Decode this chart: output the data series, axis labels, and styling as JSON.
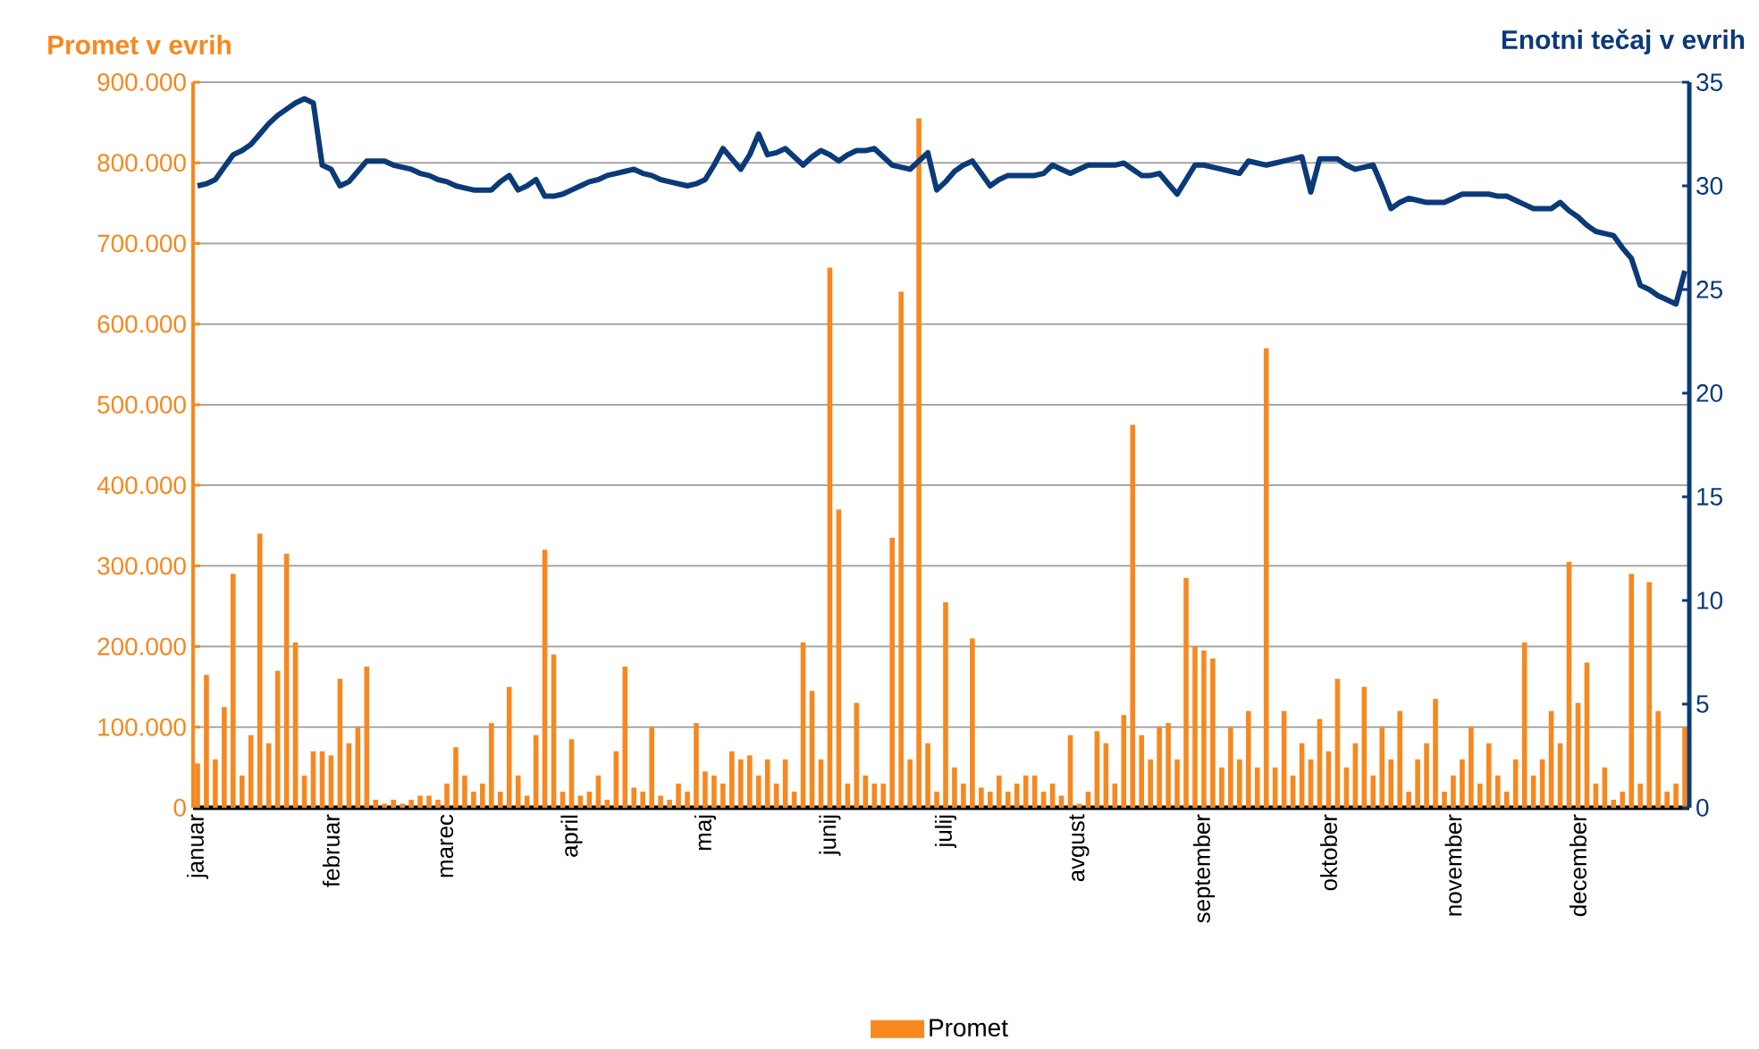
{
  "chart_data": {
    "type": "bar",
    "ylabel": "Promet v evrih",
    "y2label": "Enotni tečaj v evrih",
    "categories": [
      "januar",
      null,
      null,
      null,
      null,
      null,
      null,
      null,
      null,
      null,
      null,
      null,
      null,
      null,
      null,
      "februar",
      null,
      null,
      null,
      null,
      null,
      null,
      null,
      null,
      null,
      null,
      null,
      null,
      "marec",
      null,
      null,
      null,
      null,
      null,
      null,
      null,
      null,
      null,
      null,
      null,
      null,
      null,
      "april",
      null,
      null,
      null,
      null,
      null,
      null,
      null,
      null,
      null,
      null,
      null,
      null,
      null,
      null,
      "maj",
      null,
      null,
      null,
      null,
      null,
      null,
      null,
      null,
      null,
      null,
      null,
      null,
      null,
      "junij",
      null,
      null,
      null,
      null,
      null,
      null,
      null,
      null,
      null,
      null,
      null,
      null,
      "julij",
      null,
      null,
      null,
      null,
      null,
      null,
      null,
      null,
      null,
      null,
      null,
      null,
      null,
      null,
      "avgust",
      null,
      null,
      null,
      null,
      null,
      null,
      null,
      null,
      null,
      null,
      null,
      null,
      null,
      "september",
      null,
      null,
      null,
      null,
      null,
      null,
      null,
      null,
      null,
      null,
      null,
      null,
      null,
      "oktober",
      null,
      null,
      null,
      null,
      null,
      null,
      null,
      null,
      null,
      null,
      null,
      null,
      null,
      "november",
      null,
      null,
      null,
      null,
      null,
      null,
      null,
      null,
      null,
      null,
      null,
      null,
      null,
      "december",
      null,
      null,
      null,
      null,
      null,
      null,
      null,
      null,
      null,
      null,
      null,
      null
    ],
    "series": [
      {
        "name": "Promet",
        "color": "#f7881f",
        "values": [
          55000,
          165000,
          60000,
          125000,
          290000,
          40000,
          90000,
          340000,
          80000,
          170000,
          315000,
          205000,
          40000,
          70000,
          70000,
          65000,
          160000,
          80000,
          100000,
          175000,
          10000,
          5000,
          10000,
          5000,
          10000,
          15000,
          15000,
          10000,
          30000,
          75000,
          40000,
          20000,
          30000,
          105000,
          20000,
          150000,
          40000,
          15000,
          90000,
          320000,
          190000,
          20000,
          85000,
          15000,
          20000,
          40000,
          10000,
          70000,
          175000,
          25000,
          20000,
          100000,
          15000,
          10000,
          30000,
          20000,
          105000,
          45000,
          40000,
          30000,
          70000,
          60000,
          65000,
          40000,
          60000,
          30000,
          60000,
          20000,
          205000,
          145000,
          60000,
          670000,
          370000,
          30000,
          130000,
          40000,
          30000,
          30000,
          335000,
          640000,
          60000,
          855000,
          80000,
          20000,
          255000,
          50000,
          30000,
          210000,
          25000,
          20000,
          40000,
          20000,
          30000,
          40000,
          40000,
          20000,
          30000,
          15000,
          90000,
          5000,
          20000,
          95000,
          80000,
          30000,
          115000,
          475000,
          90000,
          60000,
          100000,
          105000,
          60000,
          285000,
          200000,
          195000,
          185000,
          50000,
          100000,
          60000,
          120000,
          50000,
          570000,
          50000,
          120000,
          40000,
          80000,
          60000,
          110000,
          70000,
          160000,
          50000,
          80000,
          150000,
          40000,
          100000,
          60000,
          120000,
          20000,
          60000,
          80000,
          135000,
          20000,
          40000,
          60000,
          100000,
          30000,
          80000,
          40000,
          20000,
          60000,
          205000,
          40000,
          60000,
          120000,
          80000,
          305000,
          130000,
          180000,
          30000,
          50000,
          10000,
          20000,
          290000,
          30000,
          280000,
          120000,
          20000,
          30000,
          100000
        ]
      },
      {
        "type": "line",
        "axis": "y2",
        "color": "#0b3a78",
        "values": [
          30.0,
          30.1,
          30.3,
          30.9,
          31.5,
          31.7,
          32.0,
          32.5,
          33.0,
          33.4,
          33.7,
          34.0,
          34.2,
          34.0,
          31.0,
          30.8,
          30.0,
          30.2,
          30.7,
          31.2,
          31.2,
          31.2,
          31.0,
          30.9,
          30.8,
          30.6,
          30.5,
          30.3,
          30.2,
          30.0,
          29.9,
          29.8,
          29.8,
          29.8,
          30.2,
          30.5,
          29.8,
          30.0,
          30.3,
          29.5,
          29.5,
          29.6,
          29.8,
          30.0,
          30.2,
          30.3,
          30.5,
          30.6,
          30.7,
          30.8,
          30.6,
          30.5,
          30.3,
          30.2,
          30.1,
          30.0,
          30.1,
          30.3,
          31.0,
          31.8,
          31.3,
          30.8,
          31.5,
          32.5,
          31.5,
          31.6,
          31.8,
          31.4,
          31.0,
          31.4,
          31.7,
          31.5,
          31.2,
          31.5,
          31.7,
          31.7,
          31.8,
          31.4,
          31.0,
          30.9,
          30.8,
          31.2,
          31.6,
          29.8,
          30.2,
          30.7,
          31.0,
          31.2,
          30.6,
          30.0,
          30.3,
          30.5,
          30.5,
          30.5,
          30.5,
          30.6,
          31.0,
          30.8,
          30.6,
          30.8,
          31.0,
          31.0,
          31.0,
          31.0,
          31.1,
          30.8,
          30.5,
          30.5,
          30.6,
          30.1,
          29.6,
          30.3,
          31.0,
          31.0,
          30.9,
          30.8,
          30.7,
          30.6,
          31.2,
          31.1,
          31.0,
          31.1,
          31.2,
          31.3,
          31.4,
          29.7,
          31.3,
          31.3,
          31.3,
          31.0,
          30.8,
          30.9,
          31.0,
          30.0,
          28.9,
          29.2,
          29.4,
          29.3,
          29.2,
          29.2,
          29.2,
          29.4,
          29.6,
          29.6,
          29.6,
          29.6,
          29.5,
          29.5,
          29.3,
          29.1,
          28.9,
          28.9,
          28.9,
          29.2,
          28.8,
          28.5,
          28.1,
          27.8,
          27.7,
          27.6,
          27.0,
          26.5,
          25.2,
          25.0,
          24.7,
          24.5,
          24.3,
          25.9
        ]
      }
    ],
    "ylim": [
      0,
      900000
    ],
    "yticks": [
      0,
      {
        "value": 100000,
        "label": "100.000"
      },
      {
        "value": 200000,
        "label": "200.000"
      },
      {
        "value": 300000,
        "label": "300.000"
      },
      {
        "value": 400000,
        "label": "400.000"
      },
      {
        "value": 500000,
        "label": "500.000"
      },
      {
        "value": 600000,
        "label": "600.000"
      },
      {
        "value": 700000,
        "label": "700.000"
      },
      {
        "value": 800000,
        "label": "800.000"
      },
      {
        "value": 900000,
        "label": "900.000"
      }
    ],
    "y2lim": [
      0,
      35
    ],
    "y2ticks": [
      0,
      5,
      10,
      15,
      20,
      25,
      30,
      35
    ],
    "grid": "y",
    "legend": "bottom"
  }
}
